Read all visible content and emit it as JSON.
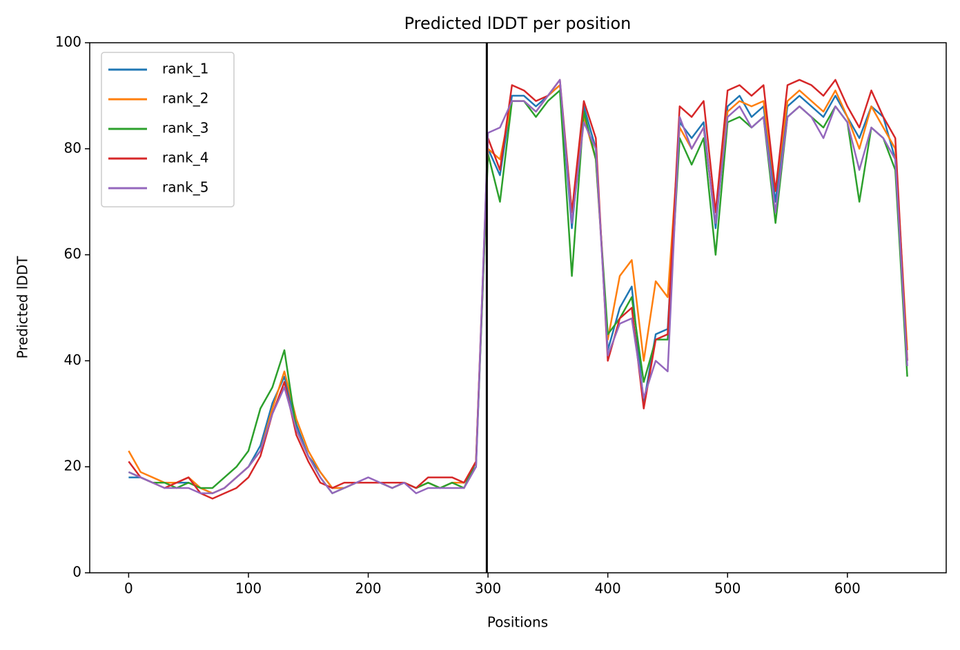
{
  "chart_data": {
    "type": "line",
    "title": "Predicted lDDT per position",
    "xlabel": "Positions",
    "ylabel": "Predicted lDDT",
    "x": [
      0,
      10,
      20,
      30,
      40,
      50,
      60,
      70,
      80,
      90,
      100,
      110,
      120,
      130,
      140,
      150,
      160,
      170,
      180,
      190,
      200,
      210,
      220,
      230,
      240,
      250,
      260,
      270,
      280,
      290,
      300,
      310,
      320,
      330,
      340,
      350,
      360,
      370,
      380,
      390,
      400,
      410,
      420,
      430,
      440,
      450,
      460,
      470,
      480,
      490,
      500,
      510,
      520,
      530,
      540,
      550,
      560,
      570,
      580,
      590,
      600,
      610,
      620,
      630,
      640,
      650
    ],
    "series": [
      {
        "name": "rank_1",
        "color": "#1f77b4",
        "values": [
          18,
          18,
          17,
          17,
          17,
          17,
          16,
          15,
          16,
          18,
          20,
          24,
          32,
          37,
          28,
          22,
          19,
          16,
          16,
          17,
          17,
          17,
          16,
          17,
          16,
          17,
          16,
          17,
          17,
          20,
          80,
          75,
          90,
          90,
          88,
          90,
          92,
          65,
          88,
          80,
          42,
          50,
          54,
          32,
          45,
          46,
          85,
          82,
          85,
          65,
          88,
          90,
          86,
          88,
          70,
          88,
          90,
          88,
          86,
          90,
          86,
          82,
          88,
          86,
          78,
          40
        ]
      },
      {
        "name": "rank_2",
        "color": "#ff7f0e",
        "values": [
          23,
          19,
          18,
          17,
          17,
          18,
          16,
          15,
          16,
          18,
          20,
          23,
          31,
          38,
          29,
          23,
          19,
          16,
          16,
          17,
          17,
          17,
          16,
          17,
          16,
          17,
          16,
          17,
          17,
          21,
          80,
          78,
          89,
          89,
          87,
          90,
          92,
          68,
          86,
          78,
          44,
          56,
          59,
          40,
          55,
          52,
          84,
          80,
          84,
          66,
          87,
          89,
          88,
          89,
          72,
          89,
          91,
          89,
          87,
          91,
          86,
          80,
          88,
          84,
          80,
          42
        ]
      },
      {
        "name": "rank_3",
        "color": "#2ca02c",
        "values": [
          19,
          18,
          17,
          17,
          16,
          17,
          16,
          16,
          18,
          20,
          23,
          31,
          35,
          42,
          27,
          22,
          18,
          15,
          16,
          17,
          17,
          17,
          16,
          17,
          16,
          17,
          16,
          17,
          16,
          21,
          79,
          70,
          89,
          89,
          86,
          89,
          91,
          56,
          87,
          78,
          45,
          48,
          52,
          36,
          44,
          44,
          82,
          77,
          82,
          60,
          85,
          86,
          84,
          86,
          66,
          86,
          88,
          86,
          84,
          88,
          85,
          70,
          84,
          82,
          76,
          37
        ]
      },
      {
        "name": "rank_4",
        "color": "#d62728",
        "values": [
          21,
          18,
          17,
          16,
          17,
          18,
          15,
          14,
          15,
          16,
          18,
          22,
          30,
          36,
          26,
          21,
          17,
          16,
          17,
          17,
          17,
          17,
          17,
          17,
          16,
          18,
          18,
          18,
          17,
          21,
          82,
          76,
          92,
          91,
          89,
          90,
          93,
          68,
          89,
          82,
          40,
          48,
          50,
          31,
          44,
          45,
          88,
          86,
          89,
          68,
          91,
          92,
          90,
          92,
          72,
          92,
          93,
          92,
          90,
          93,
          88,
          84,
          91,
          86,
          82,
          40
        ]
      },
      {
        "name": "rank_5",
        "color": "#9467bd",
        "values": [
          19,
          18,
          17,
          16,
          16,
          16,
          15,
          15,
          16,
          18,
          20,
          23,
          30,
          35,
          27,
          22,
          18,
          15,
          16,
          17,
          18,
          17,
          16,
          17,
          15,
          16,
          16,
          16,
          16,
          20,
          83,
          84,
          89,
          89,
          87,
          90,
          93,
          66,
          85,
          80,
          41,
          47,
          48,
          33,
          40,
          38,
          86,
          80,
          84,
          66,
          86,
          88,
          84,
          86,
          68,
          86,
          88,
          86,
          82,
          88,
          85,
          76,
          84,
          82,
          78,
          39
        ]
      }
    ],
    "vline": 299,
    "xlim": [
      -32.5,
      682.5
    ],
    "xticks": [
      0,
      100,
      200,
      300,
      400,
      500,
      600
    ],
    "ylim": [
      0,
      100
    ],
    "yticks": [
      0,
      20,
      40,
      60,
      80,
      100
    ],
    "legend": "upper left"
  }
}
